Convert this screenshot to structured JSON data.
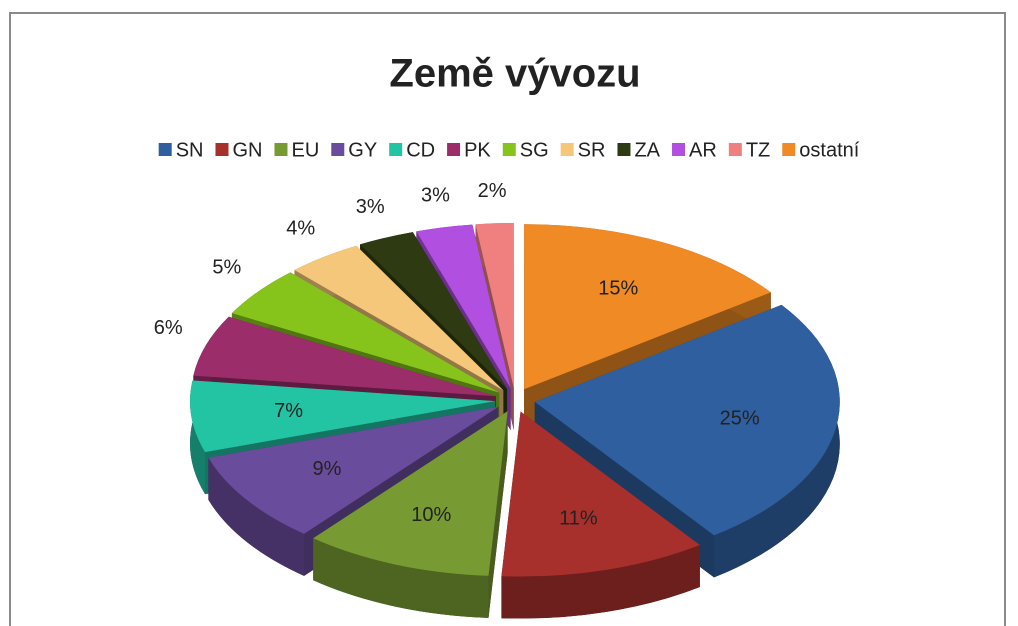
{
  "chart_data": {
    "type": "pie3d",
    "title": "Země vývozu",
    "categories": [
      "SN",
      "GN",
      "EU",
      "GY",
      "CD",
      "PK",
      "SG",
      "SR",
      "ZA",
      "AR",
      "TZ",
      "ostatní"
    ],
    "values": [
      25,
      11,
      10,
      9,
      7,
      6,
      5,
      4,
      3,
      3,
      2,
      15
    ],
    "value_labels": [
      "25%",
      "11%",
      "10%",
      "9%",
      "7%",
      "6%",
      "5%",
      "4%",
      "3%",
      "3%",
      "2%",
      "15%"
    ],
    "colors": [
      "#2f5f9e",
      "#a8302c",
      "#789a32",
      "#6a4c9c",
      "#22c4a4",
      "#9b2d6b",
      "#86c41c",
      "#f5c77a",
      "#2e3a12",
      "#b04fe0",
      "#f08080",
      "#f08a24"
    ],
    "legend": "top"
  }
}
